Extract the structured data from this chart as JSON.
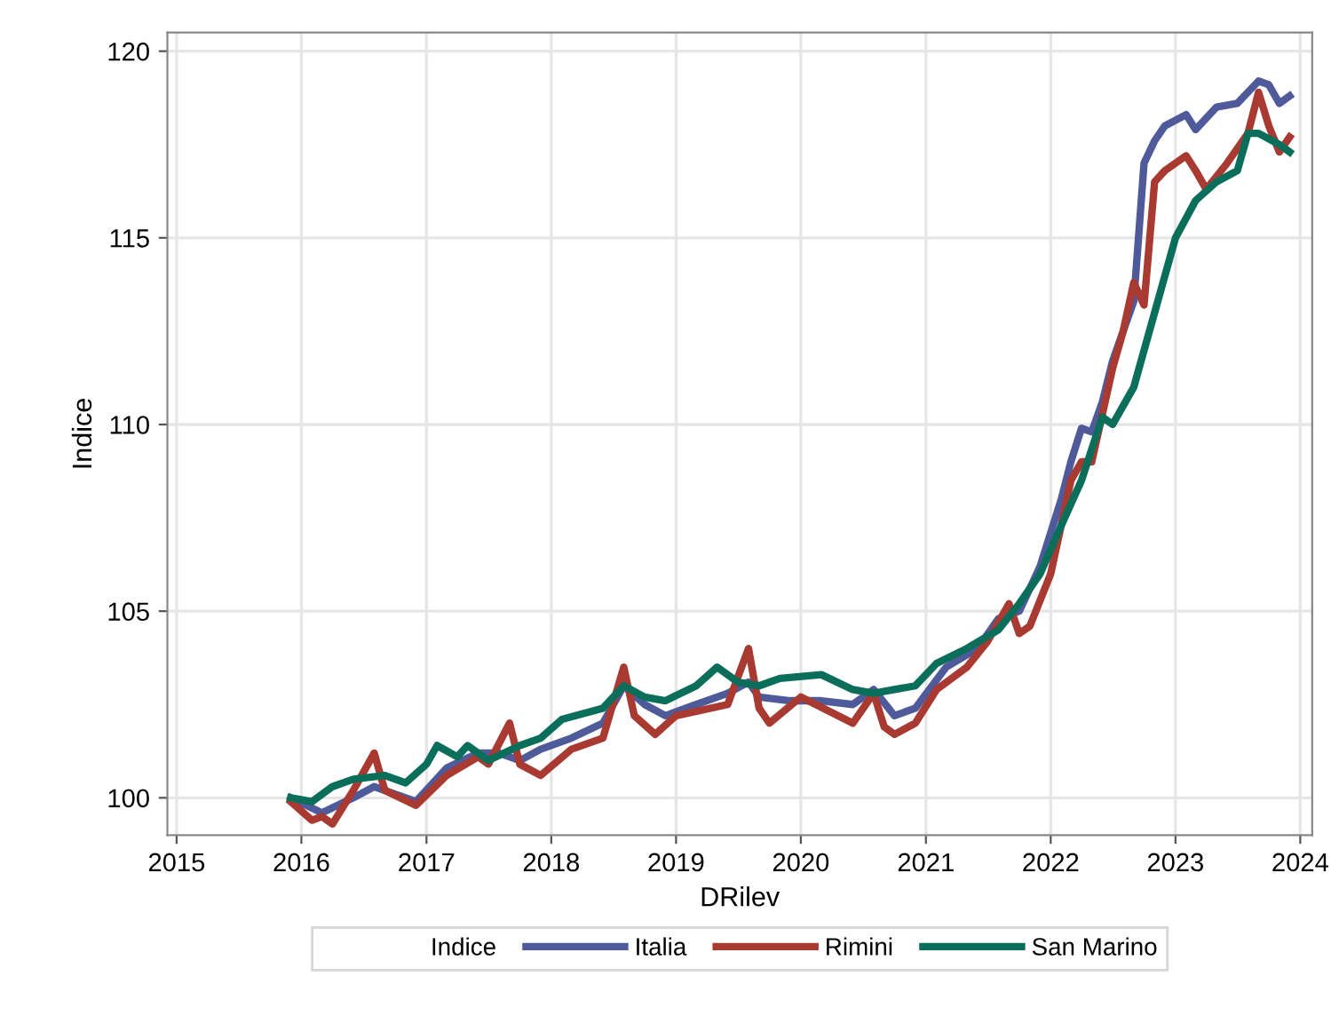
{
  "chart_data": {
    "type": "line",
    "xlabel": "DRilev",
    "ylabel": "Indice",
    "legend_title": "Indice",
    "legend": "bottom",
    "grid": true,
    "marker": "none",
    "line_style": "solid",
    "xlim": [
      "2014-12-05",
      "2024-02-05"
    ],
    "xticks": [
      "2015",
      "2016",
      "2017",
      "2018",
      "2019",
      "2020",
      "2021",
      "2022",
      "2023",
      "2024"
    ],
    "ylim": [
      99,
      120.5
    ],
    "yticks": [
      100,
      105,
      110,
      115,
      120
    ],
    "series": [
      {
        "name": "Italia",
        "color": "#4e5a9a",
        "x": [
          "2015-12",
          "2016-03",
          "2016-06",
          "2016-08",
          "2016-10",
          "2016-12",
          "2017-03",
          "2017-06",
          "2017-08",
          "2017-10",
          "2017-12",
          "2018-03",
          "2018-06",
          "2018-08",
          "2018-10",
          "2018-12",
          "2019-03",
          "2019-06",
          "2019-08",
          "2019-09",
          "2019-12",
          "2020-03",
          "2020-06",
          "2020-08",
          "2020-10",
          "2020-12",
          "2021-03",
          "2021-06",
          "2021-08",
          "2021-10",
          "2021-12",
          "2022-02",
          "2022-03",
          "2022-04",
          "2022-05",
          "2022-06",
          "2022-07",
          "2022-08",
          "2022-09",
          "2022-10",
          "2022-11",
          "2022-12",
          "2023-02",
          "2023-03",
          "2023-05",
          "2023-07",
          "2023-09",
          "2023-10",
          "2023-11",
          "2023-12"
        ],
        "values": [
          100.0,
          99.6,
          100.0,
          100.3,
          100.1,
          99.9,
          100.8,
          101.2,
          101.2,
          101.0,
          101.3,
          101.6,
          102.0,
          103.0,
          102.5,
          102.2,
          102.5,
          102.8,
          103.1,
          102.7,
          102.6,
          102.6,
          102.5,
          102.9,
          102.2,
          102.4,
          103.5,
          104.0,
          104.8,
          105.0,
          106.2,
          108.0,
          109.0,
          109.9,
          109.8,
          110.6,
          111.7,
          112.5,
          113.3,
          117.0,
          117.6,
          118.0,
          118.3,
          117.9,
          118.5,
          118.6,
          119.2,
          119.1,
          118.6,
          118.8
        ]
      },
      {
        "name": "Rimini",
        "color": "#a83a32",
        "x": [
          "2015-12",
          "2016-02",
          "2016-03",
          "2016-04",
          "2016-06",
          "2016-08",
          "2016-09",
          "2016-12",
          "2017-03",
          "2017-06",
          "2017-07",
          "2017-09",
          "2017-10",
          "2017-12",
          "2018-03",
          "2018-06",
          "2018-08",
          "2018-09",
          "2018-11",
          "2019-01",
          "2019-06",
          "2019-08",
          "2019-09",
          "2019-10",
          "2020-01",
          "2020-06",
          "2020-08",
          "2020-09",
          "2020-10",
          "2020-12",
          "2021-02",
          "2021-05",
          "2021-07",
          "2021-09",
          "2021-10",
          "2021-11",
          "2022-01",
          "2022-03",
          "2022-04",
          "2022-05",
          "2022-07",
          "2022-08",
          "2022-09",
          "2022-10",
          "2022-11",
          "2022-12",
          "2023-02",
          "2023-03",
          "2023-04",
          "2023-06",
          "2023-08",
          "2023-09",
          "2023-10",
          "2023-11",
          "2023-12"
        ],
        "values": [
          99.9,
          99.4,
          99.5,
          99.3,
          100.2,
          101.2,
          100.2,
          99.8,
          100.6,
          101.1,
          100.9,
          102.0,
          100.9,
          100.6,
          101.3,
          101.6,
          103.5,
          102.2,
          101.7,
          102.2,
          102.5,
          104.0,
          102.4,
          102.0,
          102.7,
          102.0,
          102.8,
          101.9,
          101.7,
          102.0,
          102.9,
          103.5,
          104.2,
          105.2,
          104.4,
          104.6,
          106.0,
          108.5,
          109.0,
          109.0,
          111.5,
          112.5,
          113.8,
          113.2,
          116.5,
          116.8,
          117.2,
          116.8,
          116.3,
          117.0,
          117.8,
          118.9,
          118.0,
          117.3,
          117.7
        ]
      },
      {
        "name": "San Marino",
        "color": "#0b6e5a",
        "x": [
          "2015-12",
          "2016-02",
          "2016-04",
          "2016-06",
          "2016-09",
          "2016-11",
          "2017-01",
          "2017-02",
          "2017-04",
          "2017-05",
          "2017-07",
          "2017-10",
          "2017-12",
          "2018-02",
          "2018-06",
          "2018-08",
          "2018-10",
          "2018-12",
          "2019-03",
          "2019-05",
          "2019-07",
          "2019-09",
          "2019-11",
          "2020-03",
          "2020-06",
          "2020-08",
          "2020-10",
          "2020-12",
          "2021-02",
          "2021-05",
          "2021-08",
          "2021-10",
          "2021-12",
          "2022-02",
          "2022-04",
          "2022-06",
          "2022-07",
          "2022-09",
          "2022-11",
          "2023-01",
          "2023-03",
          "2023-05",
          "2023-07",
          "2023-08",
          "2023-09",
          "2023-11",
          "2023-12"
        ],
        "values": [
          100.0,
          99.9,
          100.3,
          100.5,
          100.6,
          100.4,
          100.9,
          101.4,
          101.1,
          101.4,
          101.0,
          101.4,
          101.6,
          102.1,
          102.4,
          103.0,
          102.7,
          102.6,
          103.0,
          103.5,
          103.1,
          103.0,
          103.2,
          103.3,
          102.9,
          102.8,
          102.9,
          103.0,
          103.6,
          104.0,
          104.5,
          105.2,
          106.0,
          107.3,
          108.5,
          110.2,
          110.0,
          111.0,
          113.0,
          115.0,
          116.0,
          116.5,
          116.8,
          117.8,
          117.8,
          117.5,
          117.3
        ]
      }
    ]
  }
}
